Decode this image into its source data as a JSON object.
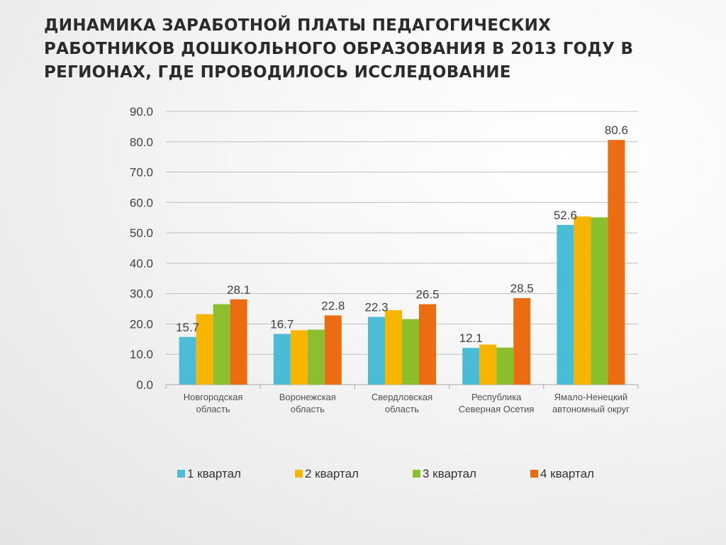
{
  "title": "ДИНАМИКА ЗАРАБОТНОЙ ПЛАТЫ ПЕДАГОГИЧЕСКИХ РАБОТНИКОВ ДОШКОЛЬНОГО ОБРАЗОВАНИЯ В 2013 ГОДУ В РЕГИОНАХ, ГДЕ ПРОВОДИЛОСЬ ИССЛЕДОВАНИЕ",
  "chart_data": {
    "type": "bar",
    "title": "",
    "xlabel": "",
    "ylabel": "",
    "ylim": [
      0,
      90
    ],
    "yticks": [
      "0.0",
      "10.0",
      "20.0",
      "30.0",
      "40.0",
      "50.0",
      "60.0",
      "70.0",
      "80.0",
      "90.0"
    ],
    "grid": true,
    "legend_position": "bottom",
    "categories": [
      [
        "Новгородская",
        "область"
      ],
      [
        "Воронежская",
        "область"
      ],
      [
        "Свердловская",
        "область"
      ],
      [
        "Республика",
        "Северная Осетия"
      ],
      [
        "Ямало-Ненецкий",
        "автономный округ"
      ]
    ],
    "series": [
      {
        "name": "1 квартал",
        "color": "#4bbcd6",
        "values": [
          15.7,
          16.7,
          22.3,
          12.1,
          52.6
        ]
      },
      {
        "name": "2 квартал",
        "color": "#f7b500",
        "values": [
          23.2,
          17.9,
          24.5,
          13.2,
          55.4
        ]
      },
      {
        "name": "3 квартал",
        "color": "#8cbf2e",
        "values": [
          26.5,
          18.1,
          21.6,
          12.2,
          55.1
        ]
      },
      {
        "name": "4 квартал",
        "color": "#ec6c11",
        "values": [
          28.1,
          22.8,
          26.5,
          28.5,
          80.6
        ]
      }
    ],
    "data_labels": [
      {
        "series": 0,
        "category": 0,
        "text": "15.7"
      },
      {
        "series": 3,
        "category": 0,
        "text": "28.1"
      },
      {
        "series": 0,
        "category": 1,
        "text": "16.7"
      },
      {
        "series": 3,
        "category": 1,
        "text": "22.8"
      },
      {
        "series": 0,
        "category": 2,
        "text": "22.3"
      },
      {
        "series": 3,
        "category": 2,
        "text": "26.5"
      },
      {
        "series": 0,
        "category": 3,
        "text": "12.1"
      },
      {
        "series": 3,
        "category": 3,
        "text": "28.5"
      },
      {
        "series": 0,
        "category": 4,
        "text": "52.6"
      },
      {
        "series": 3,
        "category": 4,
        "text": "80.6"
      }
    ]
  }
}
